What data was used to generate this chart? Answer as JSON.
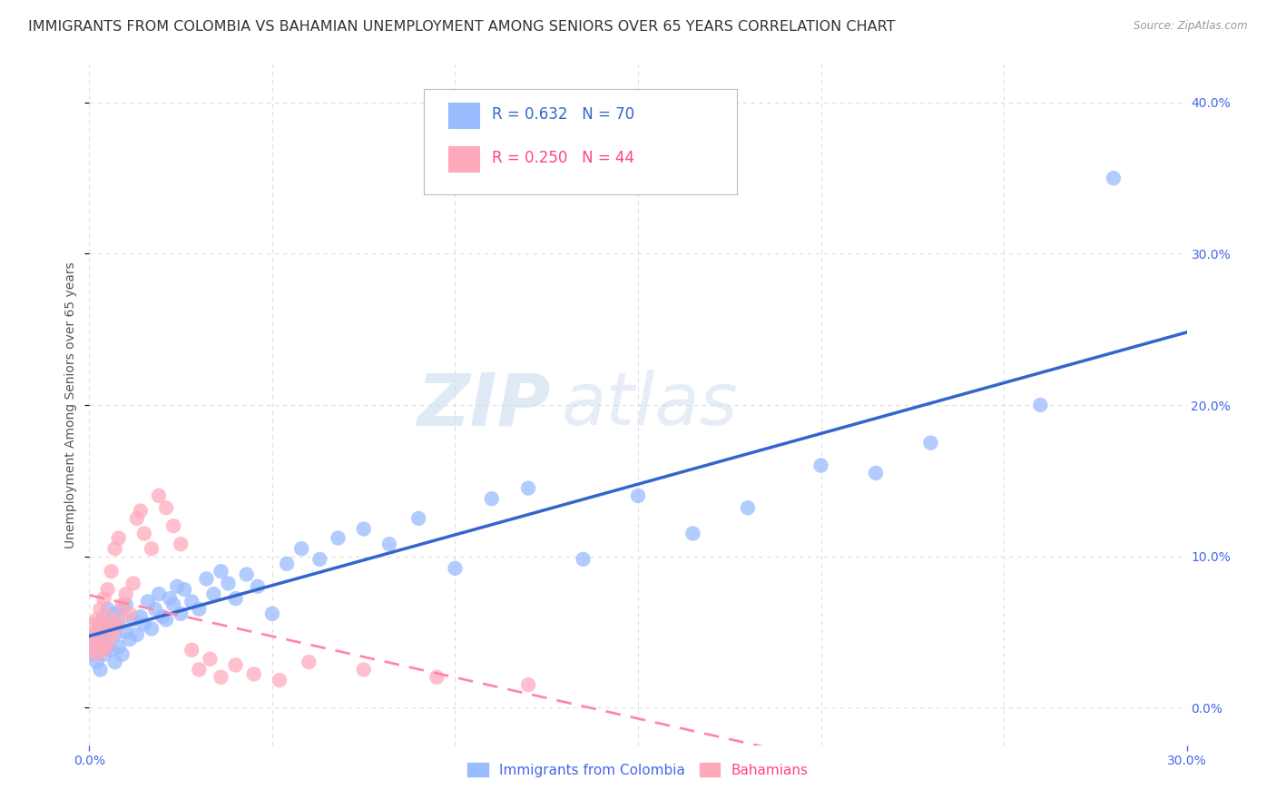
{
  "title": "IMMIGRANTS FROM COLOMBIA VS BAHAMIAN UNEMPLOYMENT AMONG SENIORS OVER 65 YEARS CORRELATION CHART",
  "source": "Source: ZipAtlas.com",
  "ylabel": "Unemployment Among Seniors over 65 years",
  "legend_colombia": "Immigrants from Colombia",
  "legend_bahamians": "Bahamians",
  "r_colombia": 0.632,
  "n_colombia": 70,
  "r_bahamians": 0.25,
  "n_bahamians": 44,
  "color_colombia": "#99bbff",
  "color_bahamians": "#ffaabb",
  "trendline_colombia_color": "#3366cc",
  "trendline_bahamians_color": "#ff88aa",
  "watermark_zip": "ZIP",
  "watermark_atlas": "atlas",
  "xmin": 0.0,
  "xmax": 0.3,
  "ymin": -0.025,
  "ymax": 0.425,
  "xtick_positions": [
    0.0,
    0.3
  ],
  "xtick_labels": [
    "0.0%",
    "30.0%"
  ],
  "yticks": [
    0.0,
    0.1,
    0.2,
    0.3,
    0.4
  ],
  "colombia_x": [
    0.001,
    0.001,
    0.002,
    0.002,
    0.002,
    0.003,
    0.003,
    0.003,
    0.004,
    0.004,
    0.004,
    0.005,
    0.005,
    0.005,
    0.006,
    0.006,
    0.007,
    0.007,
    0.007,
    0.008,
    0.008,
    0.009,
    0.009,
    0.01,
    0.01,
    0.011,
    0.012,
    0.013,
    0.014,
    0.015,
    0.016,
    0.017,
    0.018,
    0.019,
    0.02,
    0.021,
    0.022,
    0.023,
    0.024,
    0.025,
    0.026,
    0.028,
    0.03,
    0.032,
    0.034,
    0.036,
    0.038,
    0.04,
    0.043,
    0.046,
    0.05,
    0.054,
    0.058,
    0.063,
    0.068,
    0.075,
    0.082,
    0.09,
    0.1,
    0.11,
    0.12,
    0.135,
    0.15,
    0.165,
    0.18,
    0.2,
    0.215,
    0.23,
    0.26,
    0.28
  ],
  "colombia_y": [
    0.035,
    0.045,
    0.03,
    0.04,
    0.05,
    0.025,
    0.045,
    0.055,
    0.035,
    0.048,
    0.06,
    0.04,
    0.052,
    0.065,
    0.038,
    0.055,
    0.03,
    0.048,
    0.062,
    0.04,
    0.055,
    0.035,
    0.065,
    0.05,
    0.068,
    0.045,
    0.058,
    0.048,
    0.06,
    0.055,
    0.07,
    0.052,
    0.065,
    0.075,
    0.06,
    0.058,
    0.072,
    0.068,
    0.08,
    0.062,
    0.078,
    0.07,
    0.065,
    0.085,
    0.075,
    0.09,
    0.082,
    0.072,
    0.088,
    0.08,
    0.062,
    0.095,
    0.105,
    0.098,
    0.112,
    0.118,
    0.108,
    0.125,
    0.092,
    0.138,
    0.145,
    0.098,
    0.14,
    0.115,
    0.132,
    0.16,
    0.155,
    0.175,
    0.2,
    0.35
  ],
  "bahamians_x": [
    0.001,
    0.001,
    0.001,
    0.002,
    0.002,
    0.002,
    0.003,
    0.003,
    0.003,
    0.004,
    0.004,
    0.004,
    0.005,
    0.005,
    0.005,
    0.006,
    0.006,
    0.007,
    0.007,
    0.008,
    0.008,
    0.009,
    0.01,
    0.011,
    0.012,
    0.013,
    0.014,
    0.015,
    0.017,
    0.019,
    0.021,
    0.023,
    0.025,
    0.028,
    0.03,
    0.033,
    0.036,
    0.04,
    0.045,
    0.052,
    0.06,
    0.075,
    0.095,
    0.12
  ],
  "bahamians_y": [
    0.04,
    0.048,
    0.055,
    0.035,
    0.045,
    0.058,
    0.04,
    0.052,
    0.065,
    0.038,
    0.055,
    0.072,
    0.042,
    0.06,
    0.078,
    0.048,
    0.09,
    0.052,
    0.105,
    0.058,
    0.112,
    0.068,
    0.075,
    0.062,
    0.082,
    0.125,
    0.13,
    0.115,
    0.105,
    0.14,
    0.132,
    0.12,
    0.108,
    0.038,
    0.025,
    0.032,
    0.02,
    0.028,
    0.022,
    0.018,
    0.03,
    0.025,
    0.02,
    0.015
  ],
  "background_color": "#ffffff",
  "grid_color": "#dddddd",
  "axis_label_color": "#4466ee",
  "title_color": "#333333",
  "title_fontsize": 11.5,
  "label_fontsize": 10,
  "tick_fontsize": 10,
  "legend_fontsize": 12
}
